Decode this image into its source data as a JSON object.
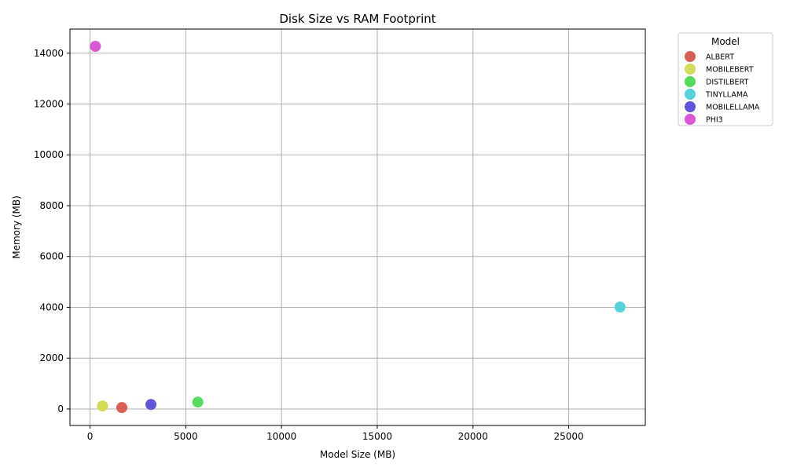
{
  "chart_data": {
    "type": "scatter",
    "title": "Disk Size vs RAM Footprint",
    "xlabel": "Model Size (MB)",
    "ylabel": "Memory (MB)",
    "xlim": [
      -1050,
      29000
    ],
    "ylim": [
      -650,
      14950
    ],
    "xticks": [
      0,
      5000,
      10000,
      15000,
      20000,
      25000
    ],
    "yticks": [
      0,
      2000,
      4000,
      6000,
      8000,
      10000,
      12000,
      14000
    ],
    "grid": true,
    "legend": {
      "title": "Model",
      "placement": "outside-top-right"
    },
    "series": [
      {
        "name": "ALBERT",
        "color": "#db5f57",
        "points": [
          [
            1660,
            55
          ]
        ]
      },
      {
        "name": "MOBILEBERT",
        "color": "#d3db57",
        "points": [
          [
            650,
            115
          ]
        ]
      },
      {
        "name": "DISTILBERT",
        "color": "#57db5f",
        "points": [
          [
            5630,
            270
          ]
        ]
      },
      {
        "name": "TINYLLAMA",
        "color": "#57d3db",
        "points": [
          [
            27680,
            4010
          ]
        ]
      },
      {
        "name": "MOBILELLAMA",
        "color": "#5f57db",
        "points": [
          [
            3180,
            175
          ]
        ]
      },
      {
        "name": "PHI3",
        "color": "#db57d3",
        "points": [
          [
            280,
            14270
          ]
        ]
      }
    ]
  }
}
